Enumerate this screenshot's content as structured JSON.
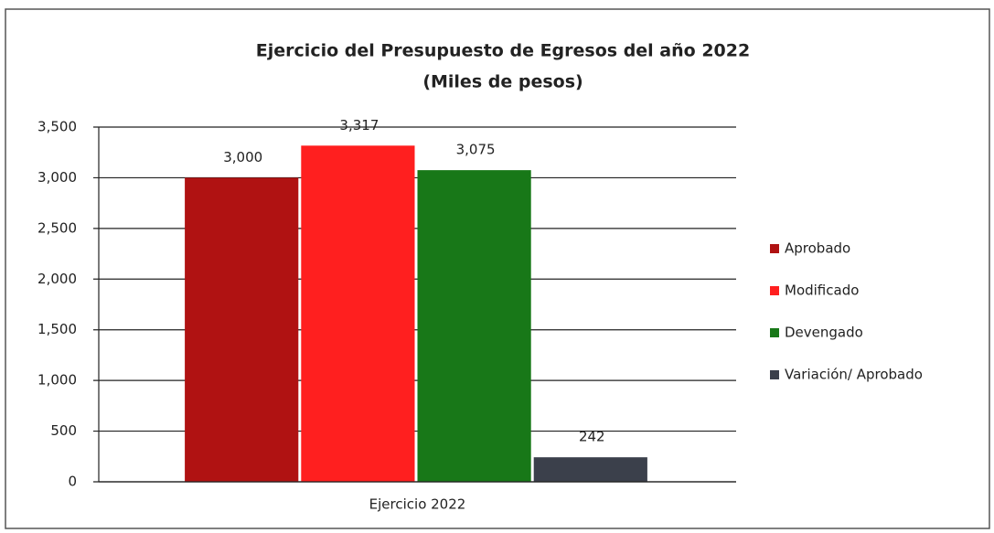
{
  "chart_data": {
    "type": "bar",
    "title": "Ejercicio del Presupuesto de Egresos del año 2022",
    "subtitle": "(Miles de pesos)",
    "categories": [
      "Ejercicio 2022"
    ],
    "series": [
      {
        "name": "Aprobado",
        "color": "#b01212",
        "values": [
          3000
        ],
        "value_labels": [
          "3,000"
        ]
      },
      {
        "name": "Modificado",
        "color": "#ff1f1f",
        "values": [
          3317
        ],
        "value_labels": [
          "3,317"
        ]
      },
      {
        "name": "Devengado",
        "color": "#187818",
        "values": [
          3075
        ],
        "value_labels": [
          "3,075"
        ]
      },
      {
        "name": "Variación/ Aprobado",
        "color": "#3b404b",
        "values": [
          242
        ]
      }
    ],
    "ylim": [
      0,
      3500
    ],
    "yticks": [
      0,
      500,
      {
        "value": 1000,
        "label": "1,000"
      },
      {
        "value": 1500,
        "label": "1,500"
      },
      {
        "value": 2000,
        "label": "2,000"
      },
      {
        "value": 2500,
        "label": "2,500"
      },
      {
        "value": 3000,
        "label": "3,000"
      },
      {
        "value": 3500,
        "label": "3,500"
      }
    ],
    "grid": true,
    "legend": "right"
  }
}
